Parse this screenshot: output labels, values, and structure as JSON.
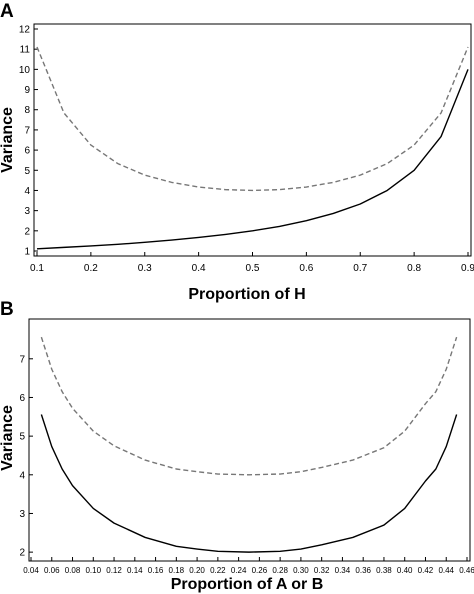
{
  "chart_data": [
    {
      "type": "line",
      "panel_label": "A",
      "xlabel": "Proportion of H",
      "ylabel": "Variance",
      "xlim": [
        0.1,
        0.9
      ],
      "ylim": [
        1,
        12
      ],
      "x_ticks": [
        "0.1",
        "0.2",
        "0.3",
        "0.4",
        "0.5",
        "0.6",
        "0.7",
        "0.8",
        "0.9"
      ],
      "y_ticks": [
        "1",
        "2",
        "3",
        "4",
        "5",
        "6",
        "7",
        "8",
        "9",
        "10",
        "11",
        "12"
      ],
      "grid": false,
      "legend": "none",
      "series": [
        {
          "style": "solid",
          "color": "#000000",
          "x": [
            0.1,
            0.15,
            0.2,
            0.25,
            0.3,
            0.35,
            0.4,
            0.45,
            0.5,
            0.55,
            0.6,
            0.65,
            0.7,
            0.75,
            0.8,
            0.85,
            0.9
          ],
          "y": [
            1.11,
            1.18,
            1.25,
            1.33,
            1.43,
            1.54,
            1.67,
            1.82,
            2.0,
            2.22,
            2.5,
            2.86,
            3.33,
            4.0,
            5.0,
            6.67,
            10.0
          ]
        },
        {
          "style": "dashed",
          "color": "#777777",
          "x": [
            0.1,
            0.15,
            0.2,
            0.25,
            0.3,
            0.35,
            0.4,
            0.45,
            0.5,
            0.55,
            0.6,
            0.65,
            0.7,
            0.75,
            0.8,
            0.85,
            0.9
          ],
          "y": [
            11.11,
            7.84,
            6.25,
            5.33,
            4.76,
            4.4,
            4.17,
            4.04,
            4.0,
            4.04,
            4.17,
            4.4,
            4.76,
            5.33,
            6.25,
            7.84,
            11.11
          ]
        }
      ]
    },
    {
      "type": "line",
      "panel_label": "B",
      "xlabel": "Proportion of A or B",
      "ylabel": "Variance",
      "xlim": [
        0.04,
        0.46
      ],
      "ylim": [
        1.9,
        7.9
      ],
      "x_ticks": [
        "0.04",
        "0.06",
        "0.08",
        "0.10",
        "0.12",
        "0.14",
        "0.16",
        "0.18",
        "0.20",
        "0.22",
        "0.24",
        "0.26",
        "0.28",
        "0.30",
        "0.32",
        "0.34",
        "0.36",
        "0.38",
        "0.40",
        "0.42",
        "0.44",
        "0.46"
      ],
      "y_ticks": [
        "2",
        "3",
        "4",
        "5",
        "6",
        "7"
      ],
      "grid": false,
      "legend": "none",
      "series": [
        {
          "style": "solid",
          "color": "#000000",
          "x": [
            0.05,
            0.06,
            0.07,
            0.08,
            0.1,
            0.12,
            0.15,
            0.18,
            0.2,
            0.22,
            0.25,
            0.28,
            0.3,
            0.32,
            0.35,
            0.38,
            0.4,
            0.42,
            0.43,
            0.44,
            0.45
          ],
          "y": [
            5.56,
            4.73,
            4.15,
            3.72,
            3.13,
            2.75,
            2.38,
            2.15,
            2.08,
            2.02,
            2.0,
            2.02,
            2.08,
            2.19,
            2.38,
            2.7,
            3.13,
            3.84,
            4.15,
            4.73,
            5.56
          ]
        },
        {
          "style": "dashed",
          "color": "#777777",
          "x": [
            0.05,
            0.06,
            0.07,
            0.08,
            0.1,
            0.12,
            0.15,
            0.18,
            0.2,
            0.22,
            0.25,
            0.28,
            0.3,
            0.32,
            0.35,
            0.38,
            0.4,
            0.42,
            0.43,
            0.44,
            0.45
          ],
          "y": [
            7.56,
            6.73,
            6.15,
            5.72,
            5.13,
            4.75,
            4.38,
            4.15,
            4.08,
            4.02,
            4.0,
            4.02,
            4.08,
            4.19,
            4.38,
            4.7,
            5.13,
            5.84,
            6.15,
            6.73,
            7.56
          ]
        }
      ]
    }
  ]
}
